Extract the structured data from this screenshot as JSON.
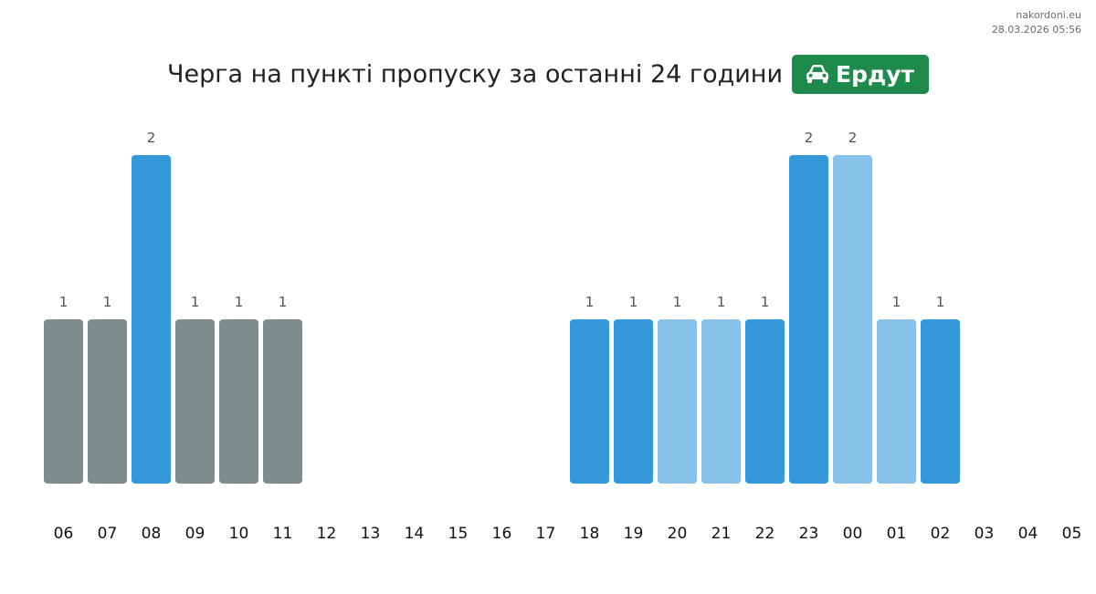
{
  "site": {
    "domain": "nakordoni.eu",
    "timestamp": "28.03.2026 05:56"
  },
  "header": {
    "title": "Черга на пункті пропуску за останні 24 години",
    "badge_icon": "car-icon",
    "badge_label": "Ердут",
    "badge_color": "#1e8a4c"
  },
  "colors": {
    "gray": "#7f8c8d",
    "blue": "#3498db",
    "light": "#85c1e9"
  },
  "chart_data": {
    "type": "bar",
    "title": "Черга на пункті пропуску за останні 24 години",
    "categories": [
      "06",
      "07",
      "08",
      "09",
      "10",
      "11",
      "12",
      "13",
      "14",
      "15",
      "16",
      "17",
      "18",
      "19",
      "20",
      "21",
      "22",
      "23",
      "00",
      "01",
      "02",
      "03",
      "04",
      "05"
    ],
    "values": [
      1,
      1,
      2,
      1,
      1,
      1,
      0,
      0,
      0,
      0,
      0,
      0,
      1,
      1,
      1,
      1,
      1,
      2,
      2,
      1,
      1,
      0,
      0,
      0
    ],
    "bar_colors": [
      "gray",
      "gray",
      "blue",
      "gray",
      "gray",
      "gray",
      "",
      "",
      "",
      "",
      "",
      "",
      "blue",
      "blue",
      "light",
      "light",
      "blue",
      "blue",
      "light",
      "light",
      "blue",
      "",
      "",
      ""
    ],
    "ylim": [
      0,
      2
    ],
    "grid": false,
    "legend": "none"
  }
}
